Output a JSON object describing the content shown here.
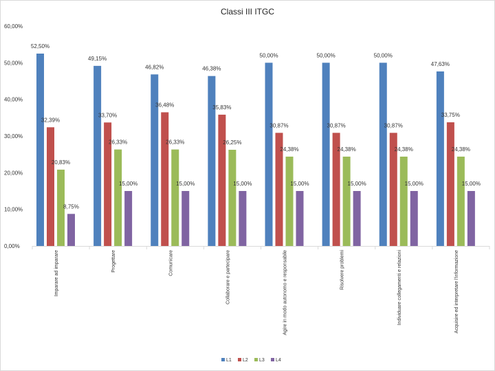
{
  "chart_data": {
    "type": "bar",
    "title": "Classi III ITGC",
    "xlabel": "",
    "ylabel": "",
    "ylim": [
      0,
      60
    ],
    "yticks": [
      "0,00%",
      "10,00%",
      "20,00%",
      "30,00%",
      "40,00%",
      "50,00%",
      "60,00%"
    ],
    "grid": false,
    "legend_position": "bottom",
    "categories": [
      "Imparare ad imparare",
      "Progettare",
      "Comunicare",
      "Collaborare e partecipare",
      "Agire in modo autonomo e responsabile",
      "Risolvere problemi",
      "Individuare collegamenti e relazioni",
      "Acquisire ed interpretare l'informazione"
    ],
    "series": [
      {
        "name": "L1",
        "color": "#4f81bd",
        "values": [
          52.5,
          49.15,
          46.82,
          46.38,
          50.0,
          50.0,
          50.0,
          47.63
        ],
        "labels": [
          "52,50%",
          "49,15%",
          "46,82%",
          "46,38%",
          "50,00%",
          "50,00%",
          "50,00%",
          "47,63%"
        ]
      },
      {
        "name": "L2",
        "color": "#c0504d",
        "values": [
          32.39,
          33.7,
          36.48,
          35.83,
          30.87,
          30.87,
          30.87,
          33.75
        ],
        "labels": [
          "32,39%",
          "33,70%",
          "36,48%",
          "35,83%",
          "30,87%",
          "30,87%",
          "30,87%",
          "33,75%"
        ]
      },
      {
        "name": "L3",
        "color": "#9bbb59",
        "values": [
          20.83,
          26.33,
          26.33,
          26.25,
          24.38,
          24.38,
          24.38,
          24.38
        ],
        "labels": [
          "20,83%",
          "26,33%",
          "26,33%",
          "26,25%",
          "24,38%",
          "24,38%",
          "24,38%",
          "24,38%"
        ]
      },
      {
        "name": "L4",
        "color": "#8064a2",
        "values": [
          8.75,
          15.0,
          15.0,
          15.0,
          15.0,
          15.0,
          15.0,
          15.0
        ],
        "labels": [
          "8,75%",
          "15,00%",
          "15,00%",
          "15,00%",
          "15,00%",
          "15,00%",
          "15,00%",
          "15,00%"
        ]
      }
    ]
  }
}
